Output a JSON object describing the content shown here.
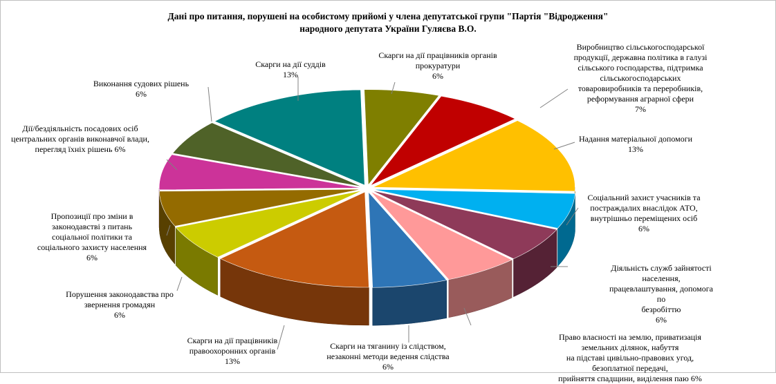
{
  "chart_data": {
    "type": "pie",
    "title": "Дані про питання, порушені на особистому прийомі у члена депутатської групи \"Партія  \"Відродження\"\nнародного  депутата України Гуляєва В.О.",
    "slices": [
      {
        "label": "Скарги на дії  працівників органів\nпрокуратури",
        "value": 6,
        "pct": "6%",
        "color": "#7f7f00"
      },
      {
        "label": "Виробництво сільськогосподарської\nпродукції, державна політика в галузі\nсільського господарства, підтримка\nсільськогосподарських\nтоваровиробників та переробників,\nреформування аграрної сфери",
        "value": 7,
        "pct": "7%",
        "color": "#c00000"
      },
      {
        "label": "Надання матеріальної допомоги",
        "value": 13,
        "pct": "13%",
        "color": "#ffc000"
      },
      {
        "label": "Соціальний захист учасників та\nпостраждалих внаслідок АТО,\nвнутрішньо переміщених осіб",
        "value": 6,
        "pct": "6%",
        "color": "#00b0f0"
      },
      {
        "label": "Діяльність служб зайнятості населення,\nпрацевлаштування, допомога по\nбезробіттю",
        "value": 6,
        "pct": "6%",
        "color": "#8e3a59"
      },
      {
        "label": "Право власності на землю, приватизація земельних ділянок, набуття\nна підставі цивільно-правових угод, безоплатної передачі,\nприйняття спадщини, виділення паю 6%",
        "value": 6,
        "pct": "",
        "color": "#ff9999"
      },
      {
        "label": "Скарги на тяганину із слідством,\nнезаконні методи ведення слідства",
        "value": 6,
        "pct": "6%",
        "color": "#2e75b6"
      },
      {
        "label": "Скарги на дії  працівників\nправоохоронних органів",
        "value": 13,
        "pct": "13%",
        "color": "#c55a11"
      },
      {
        "label": "Порушення законодавства про\nзвернення громадян",
        "value": 6,
        "pct": "6%",
        "color": "#cccc00"
      },
      {
        "label": "Пропозиції про зміни в\nзаконодавстві з питань\nсоціальної політики та\nсоціального захисту населення",
        "value": 6,
        "pct": "6%",
        "color": "#946b00"
      },
      {
        "label": "Дії/бездіяльність посадових осіб\nцентральних органів виконавчої влади,\nперегляд їхніх  рішень 6%",
        "value": 6,
        "pct": "",
        "color": "#cc3399"
      },
      {
        "label": "Виконання судових рішень",
        "value": 6,
        "pct": "6%",
        "color": "#4f6228"
      },
      {
        "label": "Скарги на дії  суддів",
        "value": 13,
        "pct": "13%",
        "color": "#008080"
      }
    ]
  }
}
